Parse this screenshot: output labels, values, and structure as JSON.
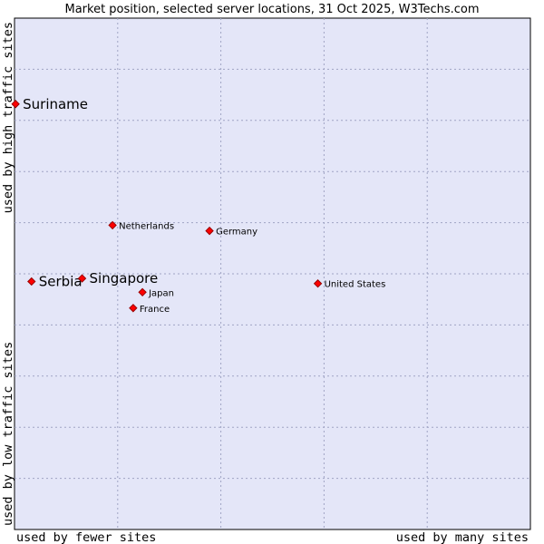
{
  "chart_data": {
    "type": "scatter",
    "title": "Market position, selected server locations, 31 Oct 2025, W3Techs.com",
    "xlabel_low": "used by fewer sites",
    "xlabel_high": "used by many sites",
    "ylabel_low": "used by low traffic sites",
    "ylabel_high": "used by high traffic sites",
    "xlim": [
      0,
      100
    ],
    "ylim": [
      0,
      100
    ],
    "grid": true,
    "colors": {
      "plot_background": "#e4e6f8",
      "grid": "#a0a4c4",
      "marker_fill": "#ff0000",
      "marker_stroke": "#990000"
    },
    "points": [
      {
        "label": "Suriname",
        "x": 0.2,
        "y": 83.2,
        "size": "large"
      },
      {
        "label": "Netherlands",
        "x": 19.0,
        "y": 59.5,
        "size": "small"
      },
      {
        "label": "Germany",
        "x": 37.8,
        "y": 58.4,
        "size": "small"
      },
      {
        "label": "Serbia",
        "x": 3.3,
        "y": 48.5,
        "size": "large"
      },
      {
        "label": "Singapore",
        "x": 13.1,
        "y": 49.1,
        "size": "large"
      },
      {
        "label": "United States",
        "x": 58.8,
        "y": 48.1,
        "size": "small"
      },
      {
        "label": "Japan",
        "x": 24.8,
        "y": 46.4,
        "size": "small"
      },
      {
        "label": "France",
        "x": 23.0,
        "y": 43.3,
        "size": "small"
      }
    ]
  }
}
